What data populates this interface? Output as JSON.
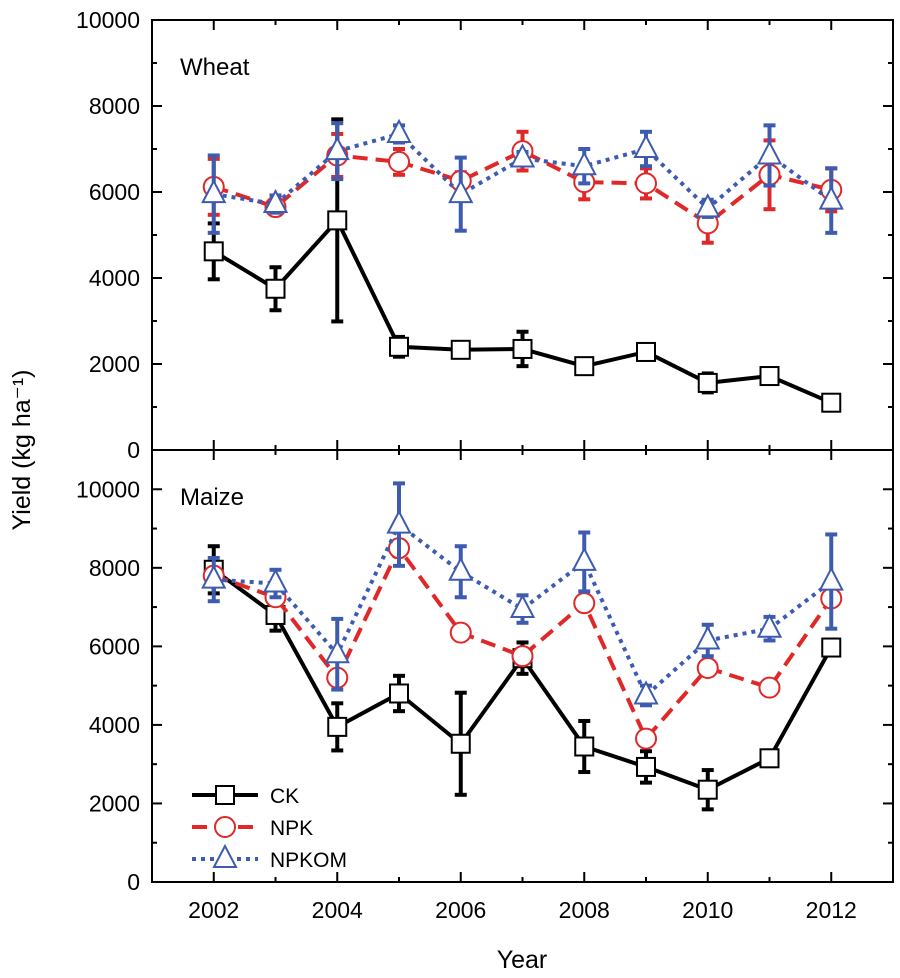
{
  "chart_data": [
    {
      "type": "line",
      "title": "Wheat",
      "xlabel": "Year",
      "ylabel": "Yield (kg ha⁻¹)",
      "xlim": [
        2001,
        2013
      ],
      "ylim": [
        0,
        10000
      ],
      "yticks": [
        0,
        2000,
        4000,
        6000,
        8000,
        10000
      ],
      "x": [
        2002,
        2003,
        2004,
        2005,
        2006,
        2007,
        2008,
        2009,
        2010,
        2011,
        2012
      ],
      "series": [
        {
          "name": "CK",
          "color": "#000000",
          "marker": "square",
          "dash": "solid",
          "values": [
            4620,
            3750,
            5340,
            2400,
            2330,
            2350,
            1950,
            2280,
            1560,
            1720,
            1100
          ],
          "errors": [
            650,
            500,
            2350,
            230,
            180,
            400,
            150,
            180,
            220,
            180,
            150
          ]
        },
        {
          "name": "NPK",
          "color": "#e02828",
          "marker": "circle",
          "dash": "dashed",
          "values": [
            6120,
            5650,
            6850,
            6700,
            6260,
            6950,
            6230,
            6200,
            5270,
            6400,
            6050
          ],
          "errors": [
            650,
            150,
            500,
            300,
            200,
            450,
            400,
            350,
            450,
            800,
            500
          ]
        },
        {
          "name": "NPKOM",
          "color": "#3d5cb0",
          "marker": "triangle",
          "dash": "dotted",
          "values": [
            5950,
            5720,
            6950,
            7350,
            5950,
            6780,
            6600,
            7000,
            5620,
            6850,
            5800
          ],
          "errors": [
            900,
            200,
            650,
            200,
            850,
            150,
            400,
            400,
            200,
            700,
            750
          ]
        }
      ]
    },
    {
      "type": "line",
      "title": "Maize",
      "xlabel": "Year",
      "ylabel": "Yield (kg ha⁻¹)",
      "xlim": [
        2001,
        2013
      ],
      "ylim": [
        0,
        11000
      ],
      "yticks": [
        0,
        2000,
        4000,
        6000,
        8000,
        10000
      ],
      "x": [
        2002,
        2003,
        2004,
        2005,
        2006,
        2007,
        2008,
        2009,
        2010,
        2011,
        2012
      ],
      "series": [
        {
          "name": "CK",
          "color": "#000000",
          "marker": "square",
          "dash": "solid",
          "values": [
            7950,
            6800,
            3950,
            4800,
            3520,
            5700,
            3450,
            2930,
            2350,
            3150,
            5970
          ],
          "errors": [
            600,
            400,
            600,
            450,
            1300,
            400,
            650,
            400,
            500,
            200,
            200
          ]
        },
        {
          "name": "NPK",
          "color": "#e02828",
          "marker": "circle",
          "dash": "dashed",
          "values": [
            7800,
            7250,
            5200,
            8500,
            6350,
            5750,
            7100,
            3650,
            5450,
            4950,
            7220
          ]
        },
        {
          "name": "NPKOM",
          "color": "#3d5cb0",
          "marker": "triangle",
          "dash": "dotted",
          "values": [
            7700,
            7600,
            5800,
            9100,
            7900,
            6950,
            8150,
            4750,
            6150,
            6450,
            7650
          ],
          "errors": [
            550,
            350,
            900,
            1050,
            650,
            350,
            750,
            250,
            400,
            300,
            1200
          ]
        }
      ]
    }
  ],
  "xticks": [
    "2002",
    "2004",
    "2006",
    "2008",
    "2010",
    "2012"
  ],
  "legend": {
    "position": "bottom-left",
    "items": [
      {
        "label": "CK",
        "color": "#000000",
        "marker": "square",
        "dash": "solid"
      },
      {
        "label": "NPK",
        "color": "#e02828",
        "marker": "circle",
        "dash": "dashed"
      },
      {
        "label": "NPKOM",
        "color": "#3d5cb0",
        "marker": "triangle",
        "dash": "dotted"
      }
    ]
  }
}
